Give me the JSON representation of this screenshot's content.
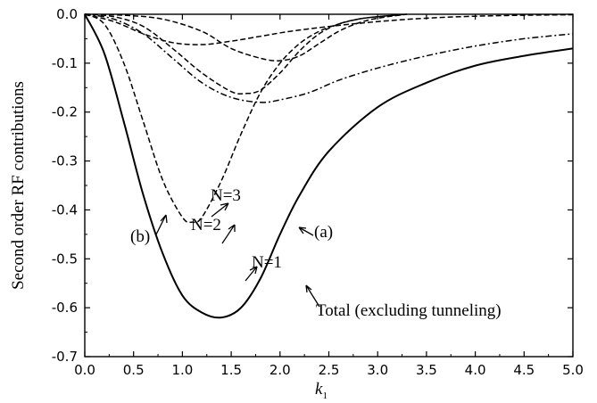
{
  "chart_data": {
    "type": "line",
    "xlabel": "k",
    "xlabel_sub": "1",
    "ylabel": "Second order RF contributions",
    "xlim": [
      0.0,
      5.0
    ],
    "ylim": [
      -0.7,
      0.0
    ],
    "grid": false,
    "x_ticks": [
      "0.0",
      "0.5",
      "1.0",
      "1.5",
      "2.0",
      "2.5",
      "3.0",
      "3.5",
      "4.0",
      "4.5",
      "5.0"
    ],
    "y_ticks": [
      "0.0",
      "-0.1",
      "-0.2",
      "-0.3",
      "-0.4",
      "-0.5",
      "-0.6",
      "-0.7"
    ],
    "series": [
      {
        "name": "Total (excluding tunneling)",
        "style": "solid",
        "x": [
          0.0,
          0.2,
          0.4,
          0.6,
          0.8,
          1.0,
          1.2,
          1.4,
          1.6,
          1.8,
          2.0,
          2.2,
          2.5,
          3.0,
          3.5,
          4.0,
          4.5,
          5.0
        ],
        "y": [
          0.0,
          -0.08,
          -0.22,
          -0.37,
          -0.49,
          -0.575,
          -0.61,
          -0.62,
          -0.6,
          -0.54,
          -0.45,
          -0.37,
          -0.28,
          -0.19,
          -0.14,
          -0.105,
          -0.085,
          -0.07
        ]
      },
      {
        "name": "N=1",
        "style": "dashed",
        "x": [
          0.0,
          0.2,
          0.4,
          0.6,
          0.8,
          1.0,
          1.1,
          1.2,
          1.4,
          1.6,
          1.8,
          2.0,
          2.2,
          2.4,
          2.6,
          2.8,
          3.0,
          3.3
        ],
        "y": [
          0.0,
          -0.02,
          -0.1,
          -0.22,
          -0.34,
          -0.415,
          -0.425,
          -0.415,
          -0.34,
          -0.245,
          -0.16,
          -0.1,
          -0.06,
          -0.035,
          -0.02,
          -0.01,
          -0.005,
          0.0
        ]
      },
      {
        "name": "N=2",
        "style": "dashed",
        "x": [
          0.0,
          0.3,
          0.6,
          0.9,
          1.2,
          1.5,
          1.65,
          1.8,
          2.0,
          2.2,
          2.4,
          2.6,
          2.8,
          3.0,
          3.3
        ],
        "y": [
          0.0,
          -0.005,
          -0.025,
          -0.07,
          -0.12,
          -0.158,
          -0.162,
          -0.155,
          -0.12,
          -0.075,
          -0.04,
          -0.02,
          -0.01,
          -0.005,
          0.0
        ]
      },
      {
        "name": "N=3",
        "style": "dashed",
        "x": [
          0.0,
          0.4,
          0.8,
          1.2,
          1.5,
          1.8,
          2.0,
          2.2,
          2.4,
          2.6,
          2.8,
          3.0,
          3.3
        ],
        "y": [
          0.0,
          -0.002,
          -0.01,
          -0.035,
          -0.07,
          -0.09,
          -0.095,
          -0.085,
          -0.06,
          -0.035,
          -0.018,
          -0.008,
          0.0
        ]
      },
      {
        "name": "(a)",
        "style": "dash-dot",
        "x": [
          0.0,
          0.3,
          0.6,
          0.9,
          1.2,
          1.5,
          1.8,
          2.0,
          2.3,
          2.6,
          3.0,
          3.5,
          4.0,
          4.5,
          5.0
        ],
        "y": [
          0.0,
          -0.01,
          -0.04,
          -0.09,
          -0.14,
          -0.17,
          -0.18,
          -0.175,
          -0.16,
          -0.135,
          -0.11,
          -0.085,
          -0.065,
          -0.05,
          -0.04
        ]
      },
      {
        "name": "(b)",
        "style": "dashed",
        "x": [
          0.0,
          0.3,
          0.6,
          0.9,
          1.2,
          1.5,
          1.8,
          2.1,
          2.5,
          3.0,
          3.5,
          4.0,
          4.5,
          5.0
        ],
        "y": [
          0.0,
          -0.015,
          -0.04,
          -0.058,
          -0.062,
          -0.055,
          -0.045,
          -0.035,
          -0.025,
          -0.015,
          -0.008,
          -0.004,
          -0.002,
          -0.001
        ]
      }
    ],
    "annotations": [
      {
        "label": "(b)"
      },
      {
        "label": "N=3"
      },
      {
        "label": "N=2"
      },
      {
        "label": "N=1"
      },
      {
        "label": "(a)"
      },
      {
        "label": "Total (excluding tunneling)"
      }
    ]
  }
}
